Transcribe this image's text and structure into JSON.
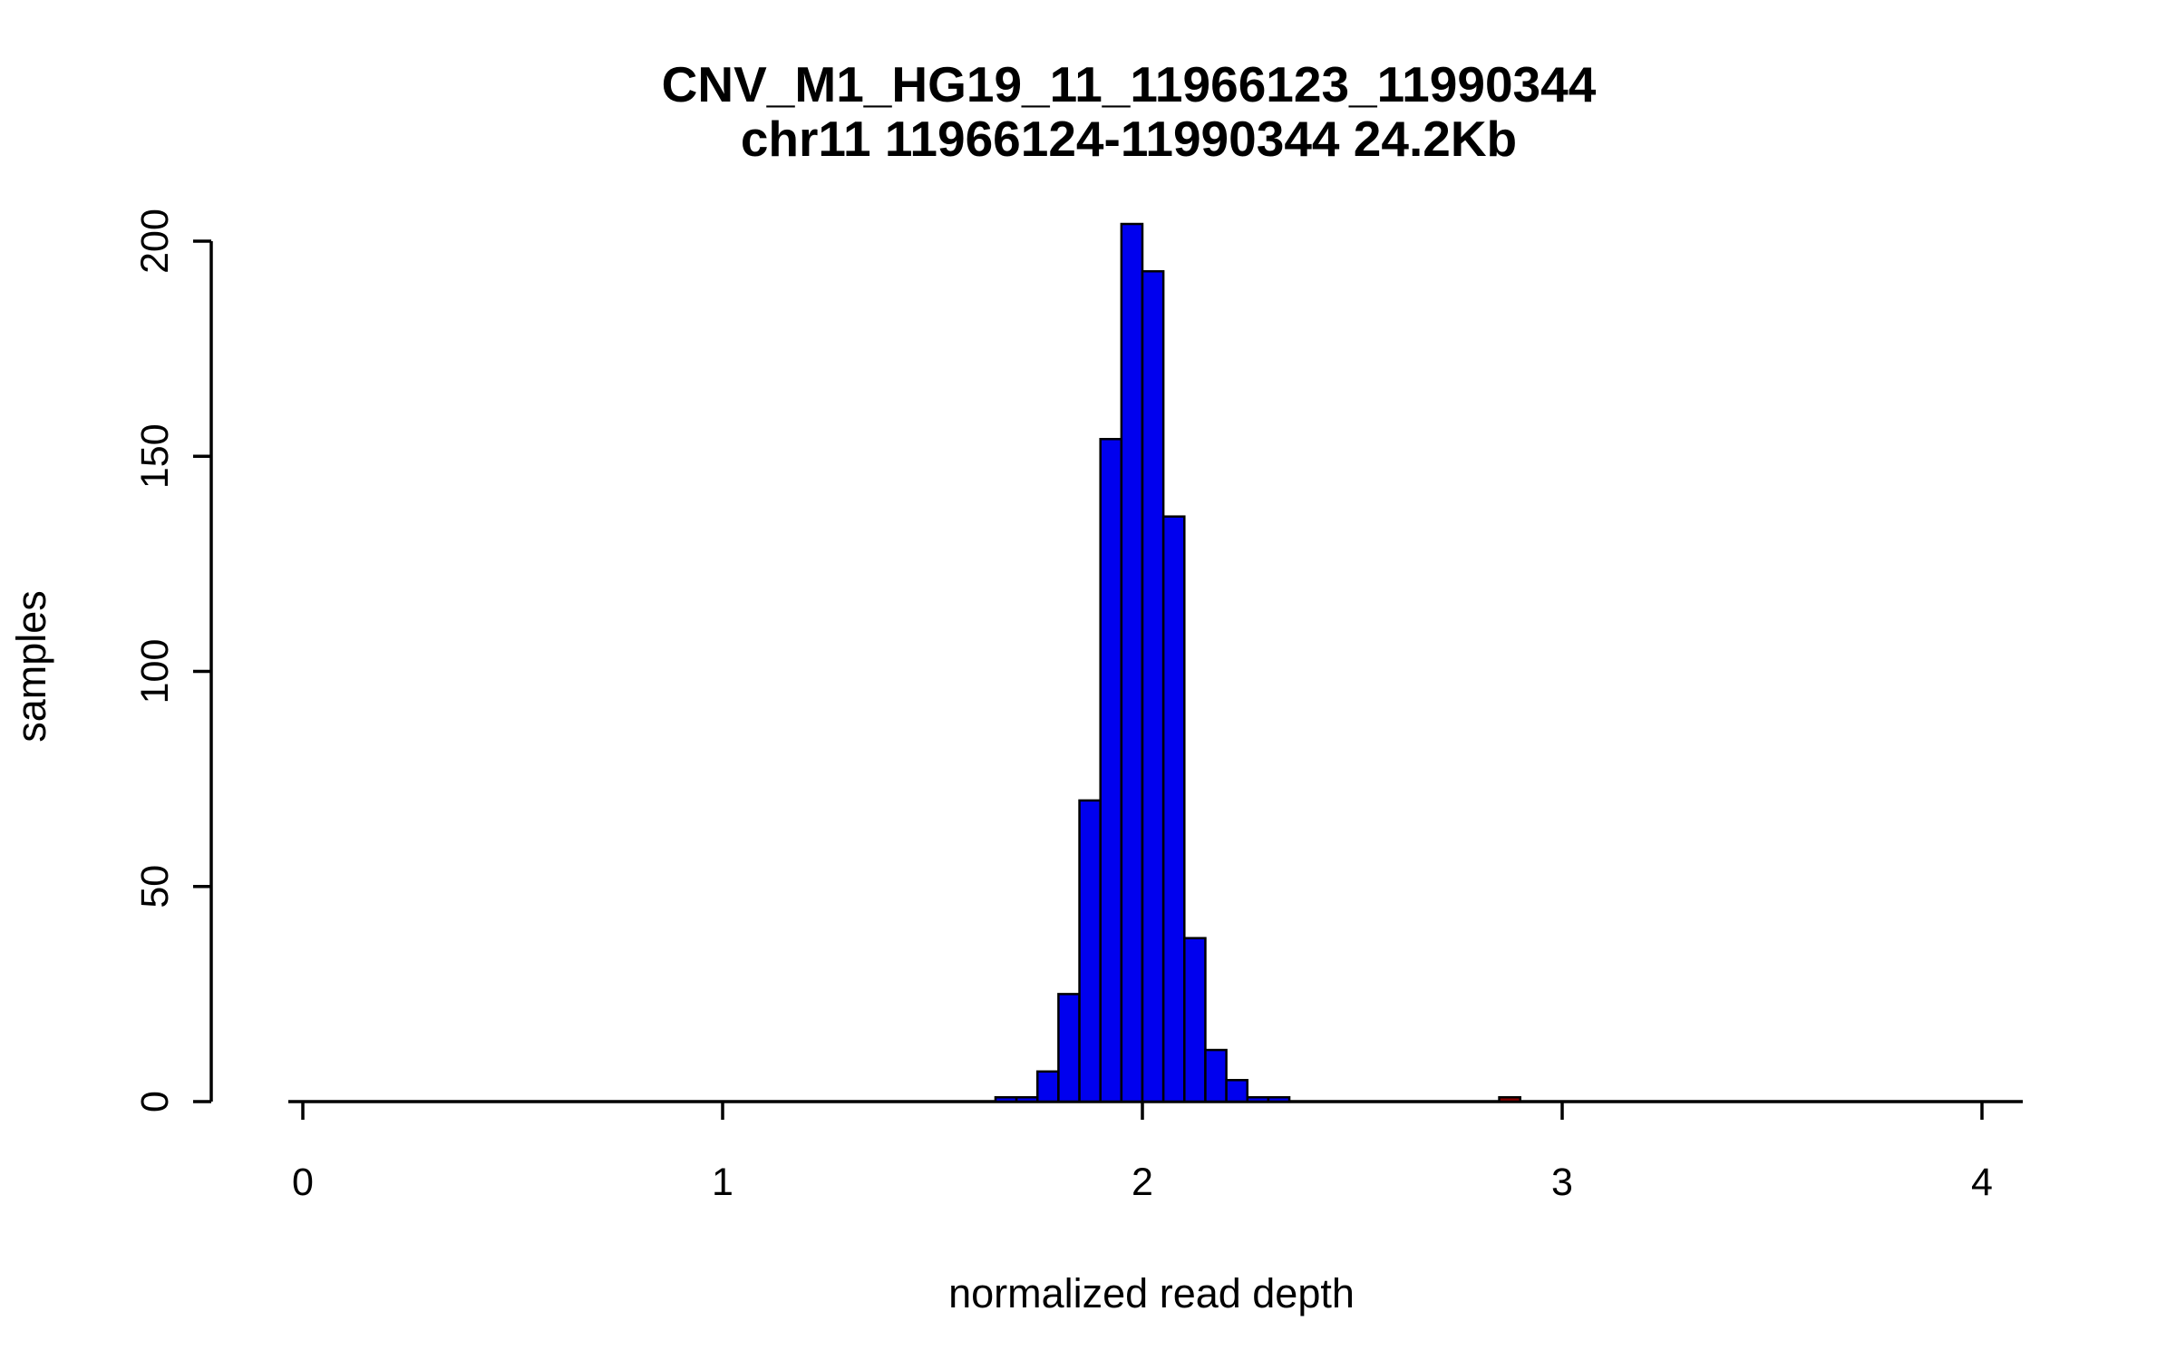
{
  "chart_data": {
    "type": "bar",
    "variant": "histogram",
    "title_line1": "CNV_M1_HG19_11_11966123_11990344",
    "title_line2": "chr11 11966124-11990344 24.2Kb",
    "xlabel": "normalized read depth",
    "ylabel": "samples",
    "xlim": [
      0,
      4.1
    ],
    "ylim": [
      0,
      200
    ],
    "x_ticks": [
      0,
      1,
      2,
      3,
      4
    ],
    "y_ticks": [
      0,
      50,
      100,
      150,
      200
    ],
    "bin_width": 0.05,
    "bar_fill": "#0000EE",
    "bar_stroke": "#000000",
    "outlier_fill": "#8B0000",
    "grid": "off",
    "legend": "none",
    "bars": [
      {
        "start": 1.65,
        "count": 1,
        "color": "#0000EE"
      },
      {
        "start": 1.7,
        "count": 1,
        "color": "#0000EE"
      },
      {
        "start": 1.75,
        "count": 7,
        "color": "#0000EE"
      },
      {
        "start": 1.8,
        "count": 25,
        "color": "#0000EE"
      },
      {
        "start": 1.85,
        "count": 70,
        "color": "#0000EE"
      },
      {
        "start": 1.9,
        "count": 154,
        "color": "#0000EE"
      },
      {
        "start": 1.95,
        "count": 204,
        "color": "#0000EE"
      },
      {
        "start": 2.0,
        "count": 193,
        "color": "#0000EE"
      },
      {
        "start": 2.05,
        "count": 136,
        "color": "#0000EE"
      },
      {
        "start": 2.1,
        "count": 38,
        "color": "#0000EE"
      },
      {
        "start": 2.15,
        "count": 12,
        "color": "#0000EE"
      },
      {
        "start": 2.2,
        "count": 5,
        "color": "#0000EE"
      },
      {
        "start": 2.25,
        "count": 1,
        "color": "#0000EE"
      },
      {
        "start": 2.3,
        "count": 1,
        "color": "#0000EE"
      },
      {
        "start": 2.85,
        "count": 1,
        "color": "#8B0000"
      }
    ]
  }
}
